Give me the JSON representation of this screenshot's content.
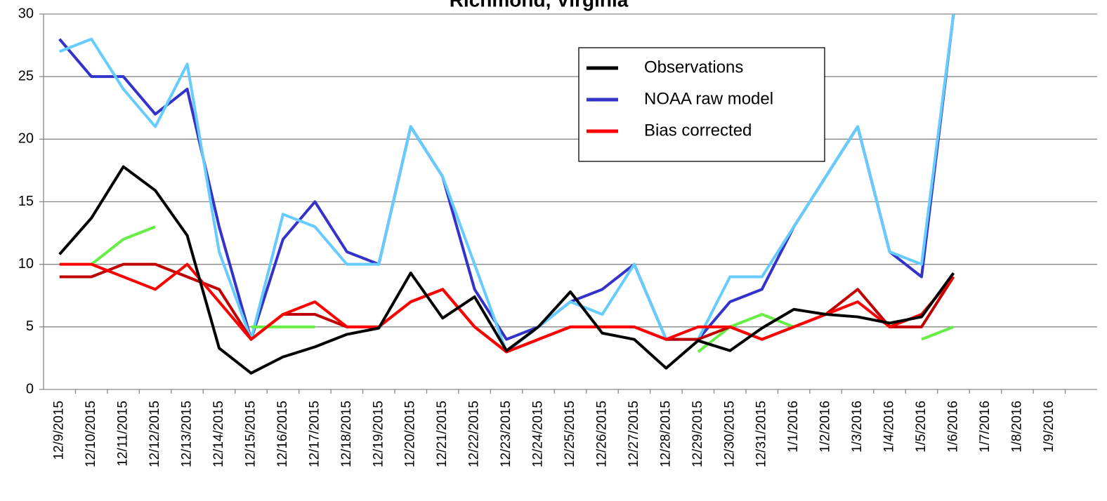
{
  "chart_data": {
    "type": "line",
    "title": "Richmond, Virginia",
    "categories": [
      "12/9/2015",
      "12/10/2015",
      "12/11/2015",
      "12/12/2015",
      "12/13/2015",
      "12/14/2015",
      "12/15/2015",
      "12/16/2015",
      "12/17/2015",
      "12/18/2015",
      "12/19/2015",
      "12/20/2015",
      "12/21/2015",
      "12/22/2015",
      "12/23/2015",
      "12/24/2015",
      "12/25/2015",
      "12/26/2015",
      "12/27/2015",
      "12/28/2015",
      "12/29/2015",
      "12/30/2015",
      "12/31/2015",
      "1/1/2016",
      "1/2/2016",
      "1/3/2016",
      "1/4/2016",
      "1/5/2016",
      "1/6/2016",
      "1/7/2016",
      "1/8/2016",
      "1/9/2016"
    ],
    "series": [
      {
        "color": "#3333cc",
        "name": "NOAA raw model",
        "values": [
          28,
          25,
          25,
          22,
          24,
          13,
          4,
          12,
          15,
          11,
          10,
          21,
          17,
          8,
          4,
          5,
          7,
          8,
          10,
          4,
          4,
          7,
          8,
          13,
          17,
          21,
          11,
          9,
          30,
          null,
          null,
          null
        ]
      },
      {
        "color": "#66ccff",
        "values": [
          27,
          28,
          24,
          21,
          26,
          11,
          4,
          14,
          13,
          10,
          10,
          21,
          17,
          10,
          3,
          5,
          7,
          6,
          10,
          4,
          4,
          9,
          9,
          13,
          17,
          21,
          11,
          10,
          30,
          null,
          null,
          null
        ]
      },
      {
        "color": "#66ee44",
        "values": [
          null,
          10,
          12,
          13,
          null,
          null,
          5,
          5,
          5,
          null,
          null,
          null,
          null,
          5,
          3,
          null,
          null,
          null,
          null,
          null,
          3,
          5,
          6,
          5,
          null,
          null,
          null,
          4,
          5,
          null,
          null,
          null
        ]
      },
      {
        "color": "#c00000",
        "values": [
          9,
          9,
          10,
          10,
          9,
          8,
          4,
          6,
          6,
          5,
          5,
          7,
          8,
          5,
          3,
          4,
          5,
          5,
          5,
          4,
          4,
          5,
          4,
          5,
          6,
          8,
          5,
          5,
          9,
          null,
          null,
          null
        ]
      },
      {
        "color": "#ff0000",
        "name": "Bias corrected",
        "values": [
          10,
          10,
          9,
          8,
          10,
          7,
          4,
          6,
          7,
          5,
          5,
          7,
          8,
          5,
          3,
          4,
          5,
          5,
          5,
          4,
          5,
          5,
          4,
          5,
          6,
          7,
          5,
          6,
          9,
          null,
          null,
          null
        ]
      },
      {
        "color": "#000000",
        "name": "Observations",
        "values": [
          10.8,
          13.7,
          17.8,
          15.9,
          12.3,
          3.3,
          1.3,
          2.6,
          3.4,
          4.4,
          4.9,
          9.3,
          5.7,
          7.4,
          3.1,
          5.0,
          7.8,
          4.5,
          4.0,
          1.7,
          3.9,
          3.1,
          4.9,
          6.4,
          6.0,
          5.8,
          5.3,
          5.8,
          9.3,
          null,
          null,
          null
        ]
      }
    ],
    "legend_order": [
      "Observations",
      "NOAA raw model",
      "Bias corrected"
    ],
    "ylim": [
      0,
      30
    ],
    "yticks": [
      0,
      5,
      10,
      15,
      20,
      25,
      30
    ],
    "grid": true
  }
}
